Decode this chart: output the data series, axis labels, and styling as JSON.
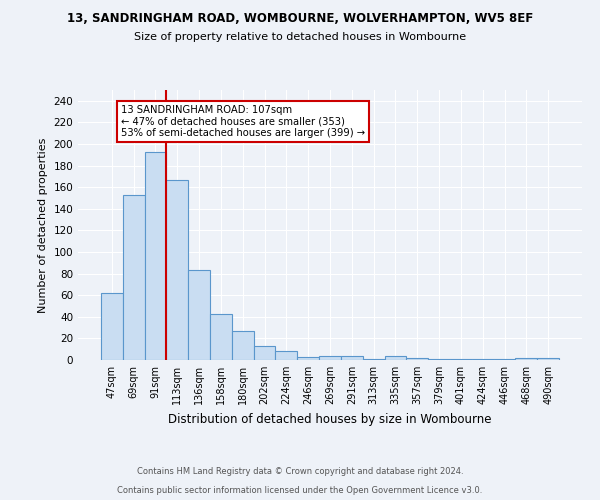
{
  "title1": "13, SANDRINGHAM ROAD, WOMBOURNE, WOLVERHAMPTON, WV5 8EF",
  "title2": "Size of property relative to detached houses in Wombourne",
  "xlabel": "Distribution of detached houses by size in Wombourne",
  "ylabel": "Number of detached properties",
  "categories": [
    "47sqm",
    "69sqm",
    "91sqm",
    "113sqm",
    "136sqm",
    "158sqm",
    "180sqm",
    "202sqm",
    "224sqm",
    "246sqm",
    "269sqm",
    "291sqm",
    "313sqm",
    "335sqm",
    "357sqm",
    "379sqm",
    "401sqm",
    "424sqm",
    "446sqm",
    "468sqm",
    "490sqm"
  ],
  "values": [
    62,
    153,
    193,
    167,
    83,
    43,
    27,
    13,
    8,
    3,
    4,
    4,
    1,
    4,
    2,
    1,
    1,
    1,
    1,
    2,
    2
  ],
  "bar_color": "#c9ddf2",
  "bar_edge_color": "#5a96cc",
  "bar_edge_width": 0.8,
  "vline_color": "#cc0000",
  "annotation_box_text": "13 SANDRINGHAM ROAD: 107sqm\n← 47% of detached houses are smaller (353)\n53% of semi-detached houses are larger (399) →",
  "ylim": [
    0,
    250
  ],
  "yticks": [
    0,
    20,
    40,
    60,
    80,
    100,
    120,
    140,
    160,
    180,
    200,
    220,
    240
  ],
  "footer1": "Contains HM Land Registry data © Crown copyright and database right 2024.",
  "footer2": "Contains public sector information licensed under the Open Government Licence v3.0.",
  "bg_color": "#eef2f8",
  "grid_color": "#ffffff"
}
